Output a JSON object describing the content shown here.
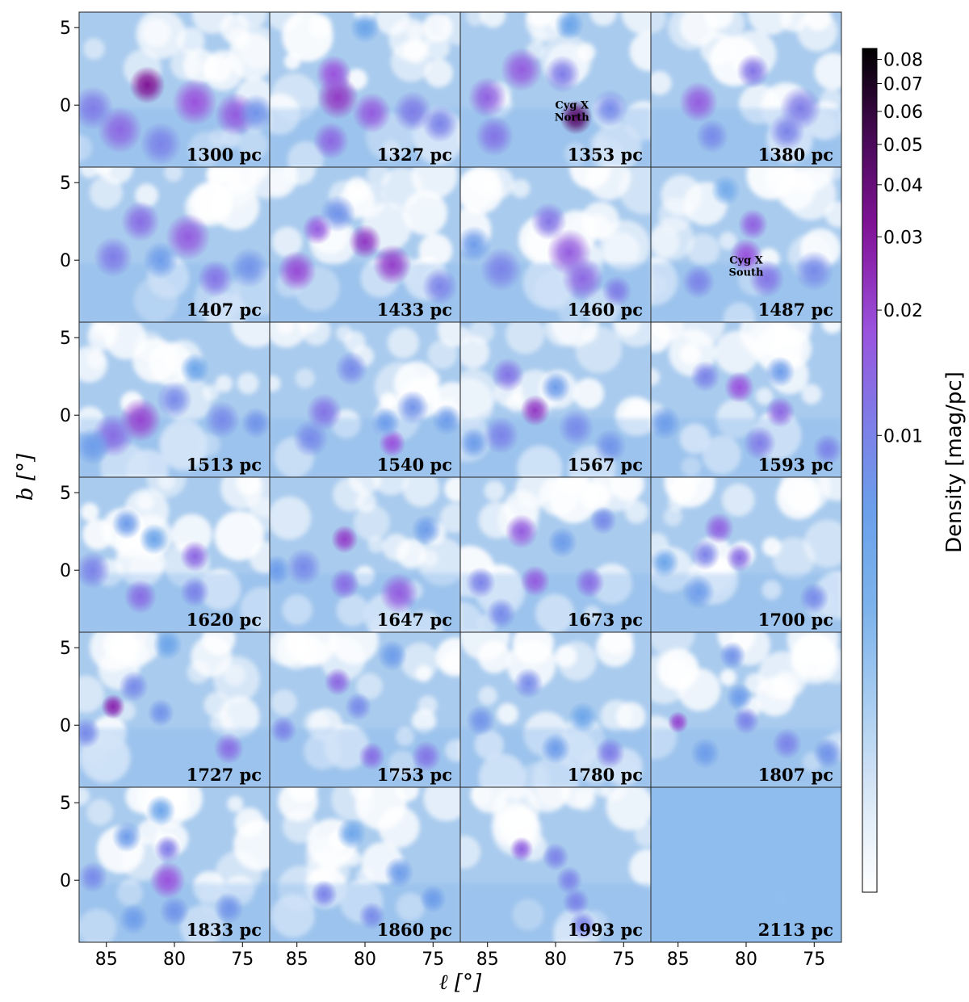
{
  "chart_data": {
    "type": "heatmap",
    "title": "",
    "xlabel": "ℓ [°]",
    "ylabel": "b [°]",
    "xlim": [
      87,
      73
    ],
    "ylim": [
      -4,
      6
    ],
    "x_ticks": [
      "85",
      "80",
      "75"
    ],
    "y_ticks": [
      "5",
      "0"
    ],
    "colorbar": {
      "label": "Density [mag/pc]",
      "scale": "log",
      "range": [
        0.0008,
        0.085
      ],
      "ticks": [
        "0.08",
        "0.07",
        "0.06",
        "0.05",
        "0.04",
        "0.03",
        "0.02",
        "0.01"
      ],
      "tick_values": [
        0.08,
        0.07,
        0.06,
        0.05,
        0.04,
        0.03,
        0.02,
        0.01
      ],
      "colors": [
        "#ffffff",
        "#dbe9f7",
        "#a9cdf1",
        "#7eb4ec",
        "#6aa3ea",
        "#7d7ee8",
        "#9a52dd",
        "#86149d",
        "#4c0a5b",
        "#000000"
      ]
    },
    "panels": [
      {
        "label": "1300 pc",
        "clumps": [
          [
            82,
            1.3,
            0.032,
            1.2
          ],
          [
            78.5,
            0.2,
            0.018,
            1.5
          ],
          [
            75.5,
            -0.6,
            0.016,
            1.4
          ],
          [
            84,
            -1.6,
            0.014,
            1.5
          ],
          [
            86,
            -0.2,
            0.011,
            1.4
          ],
          [
            81,
            -2.5,
            0.01,
            1.4
          ],
          [
            74,
            -0.5,
            0.008,
            1.2
          ]
        ]
      },
      {
        "label": "1327 pc",
        "clumps": [
          [
            82,
            0.5,
            0.022,
            1.4
          ],
          [
            82.3,
            2.0,
            0.018,
            1.2
          ],
          [
            79.5,
            -0.5,
            0.016,
            1.3
          ],
          [
            82.5,
            -2.3,
            0.014,
            1.2
          ],
          [
            76.5,
            -0.4,
            0.011,
            1.3
          ],
          [
            74.5,
            -1.2,
            0.01,
            1.2
          ],
          [
            80,
            5.0,
            0.006,
            1.0
          ]
        ]
      },
      {
        "label": "1353 pc",
        "clumps": [
          [
            78.5,
            -0.8,
            0.045,
            1.1
          ],
          [
            82.5,
            2.3,
            0.016,
            1.4
          ],
          [
            85,
            0.5,
            0.015,
            1.3
          ],
          [
            84.5,
            -2.0,
            0.012,
            1.3
          ],
          [
            79.5,
            2.0,
            0.011,
            1.2
          ],
          [
            76,
            -0.2,
            0.009,
            1.2
          ],
          [
            79,
            5.2,
            0.006,
            1.0
          ]
        ]
      },
      {
        "label": "1380 pc",
        "clumps": [
          [
            83.5,
            0.2,
            0.016,
            1.3
          ],
          [
            79.5,
            2.2,
            0.012,
            1.1
          ],
          [
            76,
            -0.2,
            0.011,
            1.4
          ],
          [
            77,
            -1.7,
            0.01,
            1.2
          ],
          [
            82.5,
            -2.0,
            0.009,
            1.1
          ]
        ]
      },
      {
        "label": "1407 pc",
        "clumps": [
          [
            79,
            1.5,
            0.016,
            1.5
          ],
          [
            82.5,
            2.5,
            0.013,
            1.3
          ],
          [
            77,
            -1.2,
            0.012,
            1.2
          ],
          [
            84.5,
            0.2,
            0.011,
            1.3
          ],
          [
            74.5,
            -0.5,
            0.008,
            1.3
          ],
          [
            81,
            0.0,
            0.007,
            1.2
          ]
        ]
      },
      {
        "label": "1433 pc",
        "clumps": [
          [
            80,
            1.2,
            0.022,
            1.1
          ],
          [
            78,
            -0.3,
            0.021,
            1.3
          ],
          [
            85,
            -0.7,
            0.019,
            1.3
          ],
          [
            83.5,
            2.0,
            0.016,
            1.0
          ],
          [
            74.5,
            -1.7,
            0.01,
            1.2
          ],
          [
            82,
            3.0,
            0.008,
            1.2
          ]
        ]
      },
      {
        "label": "1460 pc",
        "clumps": [
          [
            79,
            0.5,
            0.016,
            1.5
          ],
          [
            78,
            -1.2,
            0.014,
            1.4
          ],
          [
            80.5,
            2.5,
            0.012,
            1.2
          ],
          [
            84,
            -0.6,
            0.01,
            1.4
          ],
          [
            75.5,
            -2.0,
            0.011,
            1.0
          ],
          [
            86,
            1.0,
            0.007,
            1.2
          ]
        ]
      },
      {
        "label": "1487 pc",
        "clumps": [
          [
            80,
            0.3,
            0.018,
            1.1
          ],
          [
            79.5,
            2.3,
            0.015,
            1.0
          ],
          [
            78.5,
            -1.2,
            0.012,
            1.2
          ],
          [
            83.5,
            -1.4,
            0.01,
            1.1
          ],
          [
            75,
            -0.7,
            0.009,
            1.3
          ],
          [
            81.5,
            4.5,
            0.005,
            1.0
          ]
        ]
      },
      {
        "label": "1513 pc",
        "clumps": [
          [
            82.5,
            -0.3,
            0.02,
            1.4
          ],
          [
            84.5,
            -1.3,
            0.013,
            1.4
          ],
          [
            80,
            1.0,
            0.009,
            1.2
          ],
          [
            76.5,
            -0.3,
            0.009,
            1.2
          ],
          [
            74,
            -0.5,
            0.008,
            1.0
          ],
          [
            78.5,
            3.0,
            0.006,
            1.0
          ],
          [
            86,
            -2.0,
            0.007,
            1.2
          ]
        ]
      },
      {
        "label": "1540 pc",
        "clumps": [
          [
            78,
            -1.8,
            0.018,
            0.9
          ],
          [
            83,
            0.2,
            0.012,
            1.2
          ],
          [
            81,
            3.0,
            0.009,
            1.1
          ],
          [
            84,
            -1.5,
            0.009,
            1.2
          ],
          [
            76.5,
            0.5,
            0.008,
            1.1
          ],
          [
            74,
            -0.3,
            0.007,
            1.0
          ],
          [
            78.5,
            -0.5,
            0.007,
            1.0
          ]
        ]
      },
      {
        "label": "1567 pc",
        "clumps": [
          [
            81.5,
            0.3,
            0.022,
            1.0
          ],
          [
            83.5,
            2.6,
            0.012,
            1.1
          ],
          [
            84,
            -1.3,
            0.01,
            1.2
          ],
          [
            78.5,
            -0.8,
            0.009,
            1.2
          ],
          [
            76,
            -2.0,
            0.008,
            1.1
          ],
          [
            86,
            -1.8,
            0.007,
            1.0
          ],
          [
            80,
            1.8,
            0.007,
            1.0
          ]
        ]
      },
      {
        "label": "1593 pc",
        "clumps": [
          [
            80.5,
            1.8,
            0.018,
            1.0
          ],
          [
            77.5,
            0.2,
            0.014,
            1.0
          ],
          [
            83,
            2.5,
            0.01,
            1.0
          ],
          [
            79,
            -1.8,
            0.011,
            1.1
          ],
          [
            74,
            -2.2,
            0.01,
            1.0
          ],
          [
            77.5,
            2.8,
            0.007,
            1.0
          ],
          [
            86,
            -0.5,
            0.007,
            1.1
          ]
        ]
      },
      {
        "label": "1620 pc",
        "clumps": [
          [
            78.5,
            0.9,
            0.014,
            1.0
          ],
          [
            82.5,
            -1.7,
            0.013,
            1.1
          ],
          [
            86,
            0.0,
            0.01,
            1.2
          ],
          [
            78.5,
            -1.4,
            0.01,
            1.0
          ],
          [
            83.5,
            3.0,
            0.007,
            1.0
          ],
          [
            81.5,
            2.0,
            0.006,
            1.0
          ]
        ]
      },
      {
        "label": "1647 pc",
        "clumps": [
          [
            81.5,
            2.0,
            0.021,
            0.9
          ],
          [
            77.5,
            -1.5,
            0.016,
            1.3
          ],
          [
            81.5,
            -0.9,
            0.013,
            1.0
          ],
          [
            84.5,
            0.2,
            0.009,
            1.2
          ],
          [
            86.5,
            0.0,
            0.007,
            1.0
          ],
          [
            75.5,
            2.6,
            0.007,
            1.0
          ]
        ]
      },
      {
        "label": "1673 pc",
        "clumps": [
          [
            82.5,
            2.5,
            0.016,
            1.1
          ],
          [
            81.5,
            -0.7,
            0.016,
            1.0
          ],
          [
            77.5,
            -0.8,
            0.013,
            1.0
          ],
          [
            85.5,
            -0.8,
            0.01,
            1.0
          ],
          [
            84,
            -2.8,
            0.009,
            1.0
          ],
          [
            76.5,
            3.2,
            0.009,
            0.9
          ],
          [
            79.5,
            1.8,
            0.007,
            1.0
          ]
        ]
      },
      {
        "label": "1700 pc",
        "clumps": [
          [
            82,
            2.7,
            0.015,
            1.0
          ],
          [
            80.5,
            0.8,
            0.013,
            0.9
          ],
          [
            83,
            1.0,
            0.01,
            1.0
          ],
          [
            75,
            -1.8,
            0.009,
            1.0
          ],
          [
            83.5,
            -1.4,
            0.007,
            1.1
          ],
          [
            86,
            0.5,
            0.006,
            1.0
          ]
        ]
      },
      {
        "label": "1727 pc",
        "clumps": [
          [
            84.5,
            1.2,
            0.026,
            0.8
          ],
          [
            76,
            -1.5,
            0.013,
            1.0
          ],
          [
            83,
            2.5,
            0.009,
            1.0
          ],
          [
            86.5,
            -0.5,
            0.009,
            1.0
          ],
          [
            81,
            0.8,
            0.008,
            0.9
          ],
          [
            80.5,
            5.2,
            0.006,
            1.0
          ]
        ]
      },
      {
        "label": "1753 pc",
        "clumps": [
          [
            82,
            2.8,
            0.014,
            0.9
          ],
          [
            79.5,
            -2.0,
            0.013,
            0.9
          ],
          [
            75.5,
            -2.0,
            0.012,
            1.0
          ],
          [
            86,
            -0.3,
            0.01,
            0.9
          ],
          [
            80.5,
            1.2,
            0.009,
            0.9
          ],
          [
            78,
            4.5,
            0.007,
            1.0
          ]
        ]
      },
      {
        "label": "1780 pc",
        "clumps": [
          [
            76,
            -1.8,
            0.011,
            1.0
          ],
          [
            82,
            2.7,
            0.009,
            1.0
          ],
          [
            85.5,
            0.3,
            0.008,
            1.0
          ],
          [
            80,
            -1.5,
            0.007,
            1.0
          ],
          [
            78,
            0.5,
            0.006,
            1.0
          ]
        ]
      },
      {
        "label": "1807 pc",
        "clumps": [
          [
            85,
            0.2,
            0.02,
            0.7
          ],
          [
            80,
            0.3,
            0.01,
            0.9
          ],
          [
            77,
            -1.2,
            0.01,
            1.0
          ],
          [
            81,
            4.5,
            0.008,
            0.9
          ],
          [
            74,
            -1.8,
            0.008,
            1.0
          ],
          [
            83,
            -1.8,
            0.007,
            1.0
          ],
          [
            80.5,
            1.8,
            0.007,
            0.9
          ]
        ]
      },
      {
        "label": "1833 pc",
        "clumps": [
          [
            80.5,
            0.0,
            0.018,
            1.2
          ],
          [
            80.5,
            2.0,
            0.011,
            0.9
          ],
          [
            86,
            0.2,
            0.009,
            1.0
          ],
          [
            80,
            -2.0,
            0.008,
            1.0
          ],
          [
            76,
            -1.8,
            0.008,
            1.0
          ],
          [
            83,
            -2.5,
            0.007,
            1.0
          ],
          [
            83.5,
            2.8,
            0.007,
            1.0
          ],
          [
            81,
            4.5,
            0.006,
            1.0
          ]
        ]
      },
      {
        "label": "1860 pc",
        "clumps": [
          [
            83,
            -0.9,
            0.01,
            0.9
          ],
          [
            79.5,
            -2.3,
            0.009,
            0.9
          ],
          [
            77.5,
            0.5,
            0.007,
            1.0
          ],
          [
            75,
            -1.2,
            0.007,
            0.9
          ],
          [
            81,
            3.0,
            0.006,
            1.0
          ]
        ]
      },
      {
        "label": "1993 pc",
        "clumps": [
          [
            82.5,
            2.0,
            0.015,
            0.8
          ],
          [
            80,
            1.5,
            0.01,
            0.9
          ],
          [
            79,
            0.0,
            0.01,
            0.9
          ],
          [
            78.5,
            -1.4,
            0.01,
            0.9
          ],
          [
            78,
            -2.9,
            0.01,
            0.9
          ]
        ]
      },
      {
        "label": "2113 pc",
        "clumps": [
          [
            77.5,
            -1.2,
            0.003,
            0.7
          ]
        ]
      }
    ],
    "annotations": [
      {
        "panel": 2,
        "lines": [
          "Cyg X",
          "North"
        ],
        "l": 78.8,
        "b": -0.4
      },
      {
        "panel": 7,
        "lines": [
          "Cyg X",
          "South"
        ],
        "l": 80.0,
        "b": -0.4
      }
    ]
  }
}
